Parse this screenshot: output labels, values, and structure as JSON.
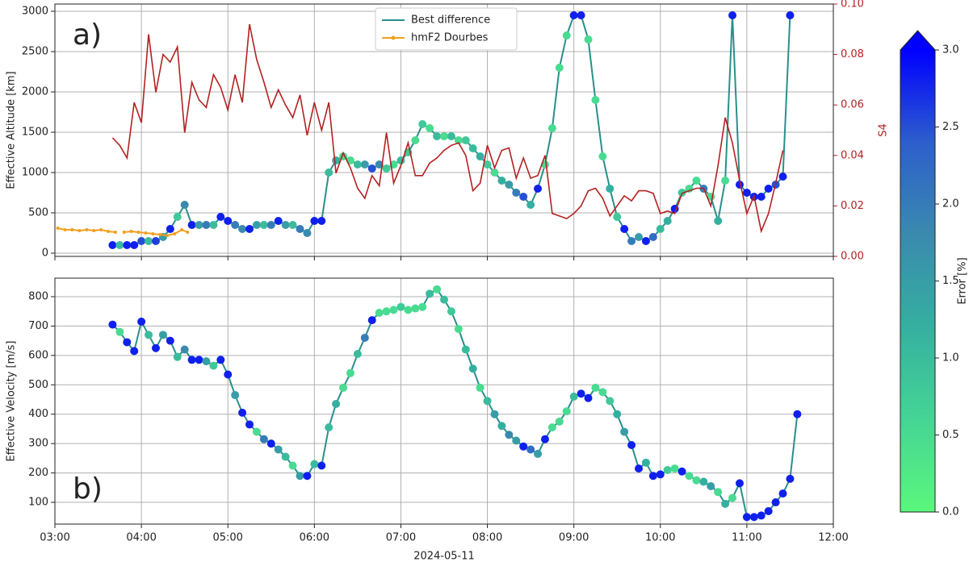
{
  "chart_data": [
    {
      "type": "line",
      "panel_label": "a)",
      "ylabel": "Effective Altitude [km]",
      "y2label": "S4",
      "grid": true,
      "legend": "upper center",
      "xlim": [
        "03:00",
        "12:00"
      ],
      "xticks": [
        "03:00",
        "04:00",
        "05:00",
        "06:00",
        "07:00",
        "08:00",
        "09:00",
        "10:00",
        "11:00",
        "12:00"
      ],
      "ylim": [
        -40,
        3090
      ],
      "yticks": [
        0,
        500,
        1000,
        1500,
        2000,
        2500,
        3000
      ],
      "y2lim": [
        0,
        0.1
      ],
      "y2ticks": [
        {
          "value": 0,
          "label": "0.00"
        },
        {
          "value": 0.02,
          "label": "0.02"
        },
        {
          "value": 0.04,
          "label": "0.04"
        },
        {
          "value": 0.06,
          "label": "0.06"
        },
        {
          "value": 0.08,
          "label": "0.08"
        },
        {
          "value": 0.1,
          "label": "0.10"
        }
      ],
      "series": [
        {
          "name": "Best difference",
          "color": "#2a8f8a",
          "x": [
            "03:40",
            "03:45",
            "03:50",
            "03:55",
            "04:00",
            "04:05",
            "04:10",
            "04:15",
            "04:20",
            "04:25",
            "04:30",
            "04:35",
            "04:40",
            "04:45",
            "04:50",
            "04:55",
            "05:00",
            "05:05",
            "05:10",
            "05:15",
            "05:20",
            "05:25",
            "05:30",
            "05:35",
            "05:40",
            "05:45",
            "05:50",
            "05:55",
            "06:00",
            "06:05",
            "06:10",
            "06:15",
            "06:20",
            "06:25",
            "06:30",
            "06:35",
            "06:40",
            "06:45",
            "06:50",
            "06:55",
            "07:00",
            "07:05",
            "07:10",
            "07:15",
            "07:20",
            "07:25",
            "07:30",
            "07:35",
            "07:40",
            "07:45",
            "07:50",
            "07:55",
            "08:00",
            "08:05",
            "08:10",
            "08:15",
            "08:20",
            "08:25",
            "08:30",
            "08:35",
            "08:40",
            "08:45",
            "08:50",
            "08:55",
            "09:00",
            "09:05",
            "09:10",
            "09:15",
            "09:20",
            "09:25",
            "09:30",
            "09:35",
            "09:40",
            "09:45",
            "09:50",
            "09:55",
            "10:00",
            "10:05",
            "10:10",
            "10:15",
            "10:20",
            "10:25",
            "10:30",
            "10:35",
            "10:40",
            "10:45",
            "10:50",
            "10:55",
            "11:00",
            "11:05",
            "11:10",
            "11:15",
            "11:20",
            "11:25",
            "11:30"
          ],
          "values": [
            100,
            100,
            100,
            100,
            150,
            150,
            150,
            200,
            300,
            450,
            600,
            350,
            350,
            350,
            350,
            450,
            400,
            350,
            300,
            300,
            350,
            350,
            350,
            400,
            350,
            350,
            300,
            250,
            400,
            400,
            1000,
            1150,
            1200,
            1150,
            1100,
            1100,
            1050,
            1100,
            1050,
            1100,
            1150,
            1250,
            1400,
            1600,
            1550,
            1450,
            1450,
            1450,
            1400,
            1400,
            1300,
            1200,
            1100,
            1000,
            900,
            850,
            750,
            700,
            600,
            800,
            1100,
            1550,
            2300,
            2700,
            2950,
            2950,
            2650,
            1900,
            1200,
            800,
            450,
            300,
            150,
            200,
            150,
            200,
            300,
            400,
            550,
            750,
            800,
            900,
            800,
            700,
            400,
            900,
            2950,
            850,
            750,
            700,
            700,
            800,
            850,
            950,
            2950
          ],
          "errors": [
            2.8,
            1.0,
            2.8,
            2.8,
            2.5,
            1.0,
            2.6,
            1.5,
            2.8,
            0.8,
            1.8,
            2.8,
            1.5,
            2.0,
            1.0,
            2.8,
            2.8,
            2.0,
            1.8,
            2.8,
            1.5,
            1.0,
            2.0,
            2.8,
            1.5,
            1.0,
            2.0,
            1.8,
            2.8,
            2.8,
            1.0,
            1.2,
            0.5,
            0.5,
            1.0,
            1.5,
            2.5,
            1.8,
            0.8,
            0.5,
            1.0,
            0.8,
            0.5,
            0.8,
            0.5,
            1.0,
            0.5,
            1.0,
            0.5,
            0.8,
            1.0,
            1.2,
            0.8,
            0.5,
            1.2,
            1.5,
            2.0,
            2.5,
            1.2,
            2.8,
            0.5,
            0.5,
            0.5,
            0.5,
            2.8,
            2.8,
            0.5,
            0.5,
            0.5,
            1.2,
            0.8,
            2.8,
            2.0,
            1.5,
            2.8,
            2.2,
            1.0,
            1.2,
            2.8,
            0.8,
            0.5,
            0.5,
            2.0,
            0.5,
            1.2,
            0.5,
            2.8,
            2.8,
            2.8,
            2.8,
            2.8,
            2.8,
            2.5,
            2.8,
            2.8
          ]
        },
        {
          "name": "hmF2 Dourbes",
          "color": "#f0a020",
          "marker": "o",
          "x": [
            "03:02",
            "03:07",
            "03:12",
            "03:17",
            "03:22",
            "03:27",
            "03:32",
            "03:37",
            "03:42",
            "03:45",
            "03:48",
            "03:53",
            "03:58",
            "04:03",
            "04:08",
            "04:13",
            "04:18",
            "04:23",
            "04:28",
            "04:32"
          ],
          "values": [
            310,
            290,
            290,
            280,
            290,
            280,
            290,
            270,
            260,
            null,
            260,
            270,
            260,
            250,
            240,
            230,
            220,
            240,
            290,
            260
          ]
        },
        {
          "color": "#b22222",
          "axis": "y2",
          "x": [
            "03:40",
            "03:45",
            "03:50",
            "03:55",
            "04:00",
            "04:05",
            "04:10",
            "04:15",
            "04:20",
            "04:25",
            "04:30",
            "04:35",
            "04:40",
            "04:45",
            "04:50",
            "04:55",
            "05:00",
            "05:05",
            "05:10",
            "05:15",
            "05:20",
            "05:25",
            "05:30",
            "05:35",
            "05:40",
            "05:45",
            "05:50",
            "05:55",
            "06:00",
            "06:05",
            "06:10",
            "06:15",
            "06:20",
            "06:25",
            "06:30",
            "06:35",
            "06:40",
            "06:45",
            "06:50",
            "06:55",
            "07:00",
            "07:05",
            "07:10",
            "07:15",
            "07:20",
            "07:25",
            "07:30",
            "07:35",
            "07:40",
            "07:45",
            "07:50",
            "07:55",
            "08:00",
            "08:05",
            "08:10",
            "08:15",
            "08:20",
            "08:25",
            "08:30",
            "08:35",
            "08:40",
            "08:45",
            "08:50",
            "08:55",
            "09:00",
            "09:05",
            "09:10",
            "09:15",
            "09:20",
            "09:25",
            "09:30",
            "09:35",
            "09:40",
            "09:45",
            "09:50",
            "09:55",
            "10:00",
            "10:05",
            "10:10",
            "10:15",
            "10:20",
            "10:25",
            "10:30",
            "10:35",
            "10:40",
            "10:45",
            "10:50",
            "10:55",
            "11:00",
            "11:05",
            "11:10",
            "11:15",
            "11:20",
            "11:25"
          ],
          "values": [
            0.047,
            0.044,
            0.039,
            0.061,
            0.053,
            0.088,
            0.065,
            0.08,
            0.077,
            0.083,
            0.049,
            0.069,
            0.062,
            0.059,
            0.072,
            0.067,
            0.058,
            0.072,
            0.061,
            0.092,
            0.078,
            0.069,
            0.059,
            0.066,
            0.06,
            0.055,
            0.064,
            0.048,
            0.061,
            0.05,
            0.061,
            0.033,
            0.041,
            0.035,
            0.027,
            0.023,
            0.032,
            0.028,
            0.049,
            0.029,
            0.036,
            0.045,
            0.032,
            0.032,
            0.037,
            0.039,
            0.042,
            0.044,
            0.045,
            0.04,
            0.026,
            0.029,
            0.044,
            0.035,
            0.042,
            0.043,
            0.031,
            0.039,
            0.031,
            0.032,
            0.04,
            0.017,
            0.016,
            0.015,
            0.017,
            0.02,
            0.026,
            0.027,
            0.023,
            0.016,
            0.02,
            0.024,
            0.022,
            0.026,
            0.026,
            0.025,
            0.017,
            0.018,
            0.017,
            0.025,
            0.026,
            0.027,
            0.027,
            0.02,
            0.036,
            0.055,
            0.045,
            0.03,
            0.017,
            0.024,
            0.01,
            0.017,
            0.029,
            0.042
          ]
        }
      ]
    },
    {
      "type": "line",
      "panel_label": "b)",
      "ylabel": "Effective Velocity [m/s]",
      "xlabel": "2024-05-11",
      "grid": true,
      "xlim": [
        "03:00",
        "12:00"
      ],
      "xticks": [
        "03:00",
        "04:00",
        "05:00",
        "06:00",
        "07:00",
        "08:00",
        "09:00",
        "10:00",
        "11:00",
        "12:00"
      ],
      "ylim": [
        26,
        863
      ],
      "yticks": [
        100,
        200,
        300,
        400,
        500,
        600,
        700,
        800
      ],
      "series": [
        {
          "color": "#2a8f8a",
          "x": [
            "03:40",
            "03:45",
            "03:50",
            "03:55",
            "04:00",
            "04:05",
            "04:10",
            "04:15",
            "04:20",
            "04:25",
            "04:30",
            "04:35",
            "04:40",
            "04:45",
            "04:50",
            "04:55",
            "05:00",
            "05:05",
            "05:10",
            "05:15",
            "05:20",
            "05:25",
            "05:30",
            "05:35",
            "05:40",
            "05:45",
            "05:50",
            "05:55",
            "06:00",
            "06:05",
            "06:10",
            "06:15",
            "06:20",
            "06:25",
            "06:30",
            "06:35",
            "06:40",
            "06:45",
            "06:50",
            "06:55",
            "07:00",
            "07:05",
            "07:10",
            "07:15",
            "07:20",
            "07:25",
            "07:30",
            "07:35",
            "07:40",
            "07:45",
            "07:50",
            "07:55",
            "08:00",
            "08:05",
            "08:10",
            "08:15",
            "08:20",
            "08:25",
            "08:30",
            "08:35",
            "08:40",
            "08:45",
            "08:50",
            "08:55",
            "09:00",
            "09:05",
            "09:10",
            "09:15",
            "09:20",
            "09:25",
            "09:30",
            "09:35",
            "09:40",
            "09:45",
            "09:50",
            "09:55",
            "10:00",
            "10:05",
            "10:10",
            "10:15",
            "10:20",
            "10:25",
            "10:30",
            "10:35",
            "10:40",
            "10:45",
            "10:50",
            "10:55",
            "11:00",
            "11:05",
            "11:10",
            "11:15",
            "11:20",
            "11:25",
            "11:30",
            "11:35"
          ],
          "values": [
            705,
            680,
            645,
            615,
            715,
            670,
            625,
            670,
            650,
            595,
            620,
            585,
            585,
            580,
            565,
            585,
            535,
            465,
            405,
            365,
            340,
            315,
            300,
            280,
            255,
            225,
            190,
            190,
            230,
            225,
            355,
            435,
            490,
            540,
            605,
            660,
            720,
            745,
            750,
            755,
            765,
            755,
            760,
            765,
            810,
            825,
            790,
            750,
            690,
            620,
            555,
            490,
            445,
            400,
            360,
            330,
            310,
            290,
            280,
            265,
            315,
            355,
            375,
            410,
            460,
            470,
            455,
            490,
            475,
            445,
            400,
            340,
            295,
            215,
            235,
            190,
            195,
            210,
            215,
            205,
            190,
            175,
            170,
            155,
            135,
            95,
            115,
            165,
            50,
            50,
            55,
            70,
            100,
            130,
            180,
            400
          ],
          "errors": [
            2.8,
            0.5,
            2.8,
            2.8,
            2.8,
            1.0,
            2.8,
            1.5,
            2.8,
            1.0,
            1.8,
            2.8,
            2.8,
            1.5,
            0.8,
            2.8,
            2.8,
            1.5,
            2.8,
            2.8,
            0.5,
            2.0,
            2.8,
            1.5,
            1.0,
            0.5,
            1.5,
            2.8,
            1.0,
            2.8,
            1.0,
            1.2,
            0.5,
            0.5,
            1.0,
            2.0,
            2.8,
            0.5,
            0.5,
            0.5,
            0.8,
            0.5,
            0.5,
            0.5,
            1.0,
            0.5,
            1.0,
            0.8,
            0.5,
            1.0,
            1.2,
            0.5,
            1.0,
            1.5,
            1.2,
            1.8,
            1.5,
            2.8,
            2.2,
            1.5,
            2.8,
            0.5,
            0.5,
            0.5,
            1.0,
            2.8,
            2.8,
            0.5,
            0.5,
            0.8,
            1.2,
            1.5,
            2.8,
            2.8,
            1.2,
            2.8,
            2.8,
            0.8,
            0.5,
            2.8,
            0.5,
            0.5,
            1.2,
            1.5,
            0.5,
            1.2,
            0.5,
            2.8,
            2.8,
            2.8,
            2.8,
            2.8,
            2.8,
            2.8,
            2.8,
            2.8
          ]
        }
      ]
    }
  ],
  "colorbar": {
    "label": "Error [%]",
    "lim": [
      0,
      3
    ],
    "extend": "max",
    "ticks": [
      {
        "value": 0,
        "label": "0.0"
      },
      {
        "value": 0.5,
        "label": "0.5"
      },
      {
        "value": 1,
        "label": "1.0"
      },
      {
        "value": 1.5,
        "label": "1.5"
      },
      {
        "value": 2,
        "label": "2.0"
      },
      {
        "value": 2.5,
        "label": "2.5"
      },
      {
        "value": 3,
        "label": "3.0"
      }
    ],
    "colors": [
      "#5af77c",
      "#45d595",
      "#35b0a0",
      "#3a8aae",
      "#2d5fcc",
      "#0000ff"
    ]
  }
}
